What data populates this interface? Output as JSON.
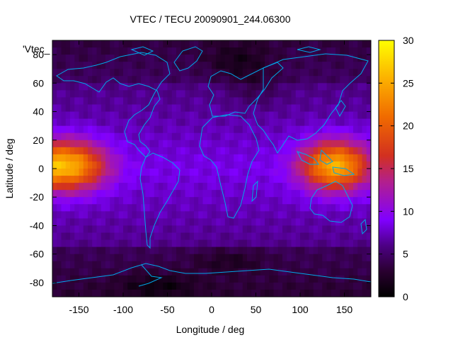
{
  "chart_data": {
    "type": "heatmap",
    "title": "VTEC / TECU 20090901_244.06300",
    "xlabel": "Longitude / deg",
    "ylabel": "Latitude / deg",
    "legend_key": "'Vtec_",
    "xlim": [
      -180,
      180
    ],
    "ylim": [
      -90,
      90
    ],
    "xticks": [
      -150,
      -100,
      -50,
      0,
      50,
      100,
      150
    ],
    "yticks": [
      -80,
      -60,
      -40,
      -20,
      0,
      20,
      40,
      60,
      80
    ],
    "colorbar": {
      "range": [
        0,
        30
      ],
      "ticks": [
        0,
        5,
        10,
        15,
        20,
        25,
        30
      ],
      "palette": "black-purple-red-orange-yellow"
    },
    "features": [
      {
        "name": "equatorial anomaly east",
        "lon_range": [
          90,
          180
        ],
        "lat_range": [
          -25,
          25
        ],
        "peak_tecu": 25
      },
      {
        "name": "equatorial anomaly west",
        "lon_range": [
          -180,
          -100
        ],
        "lat_range": [
          -25,
          25
        ],
        "peak_tecu": 24
      },
      {
        "name": "background",
        "typical_tecu": 7
      },
      {
        "name": "high latitude minimum",
        "typical_tecu": 4
      }
    ]
  },
  "colors": {
    "coastline": "#00a8e8",
    "axis": "#000000"
  }
}
